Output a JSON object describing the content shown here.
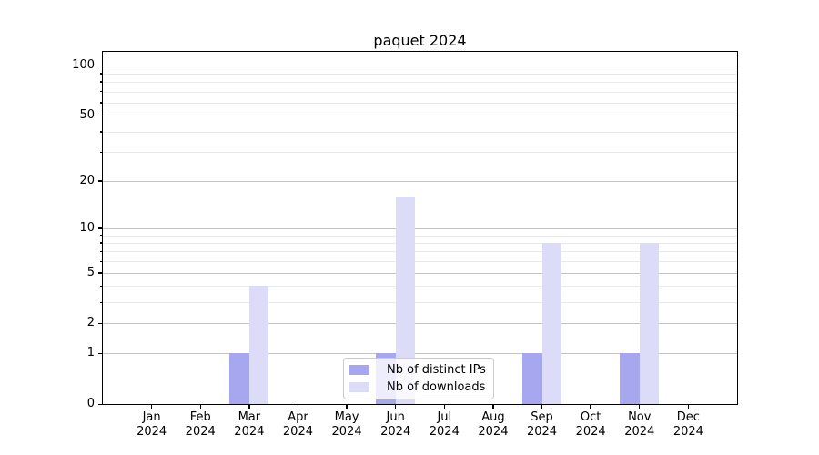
{
  "chart_data": {
    "type": "bar",
    "title": "paquet 2024",
    "categories": [
      "Jan 2024",
      "Feb 2024",
      "Mar 2024",
      "Apr 2024",
      "May 2024",
      "Jun 2024",
      "Jul 2024",
      "Aug 2024",
      "Sep 2024",
      "Oct 2024",
      "Nov 2024",
      "Dec 2024"
    ],
    "series": [
      {
        "name": "Nb of distinct IPs",
        "color": "#a7a7f0",
        "values": [
          0,
          0,
          1,
          0,
          0,
          1,
          0,
          0,
          1,
          0,
          1,
          0
        ]
      },
      {
        "name": "Nb of downloads",
        "color": "#dcdcf8",
        "values": [
          0,
          0,
          4,
          0,
          0,
          16,
          0,
          0,
          8,
          0,
          8,
          0
        ]
      }
    ],
    "yscale": "log1p",
    "ylim": [
      0,
      121
    ],
    "yticks_major": [
      0,
      1,
      2,
      5,
      10,
      20,
      50,
      100
    ],
    "ytick_labels": [
      "0",
      "1",
      "2",
      "5",
      "10",
      "20",
      "50",
      "100"
    ],
    "yticks_minor": [
      3,
      4,
      6,
      7,
      8,
      9,
      30,
      40,
      60,
      70,
      80,
      90
    ],
    "grid": "horizontal",
    "legend_position": "lower-center"
  },
  "style": {
    "major_grid_color": "#c4c4c4",
    "minor_grid_color": "#e9e9e9",
    "axis_color": "#000000",
    "background": "#ffffff",
    "legend_border": "#cccccc"
  }
}
